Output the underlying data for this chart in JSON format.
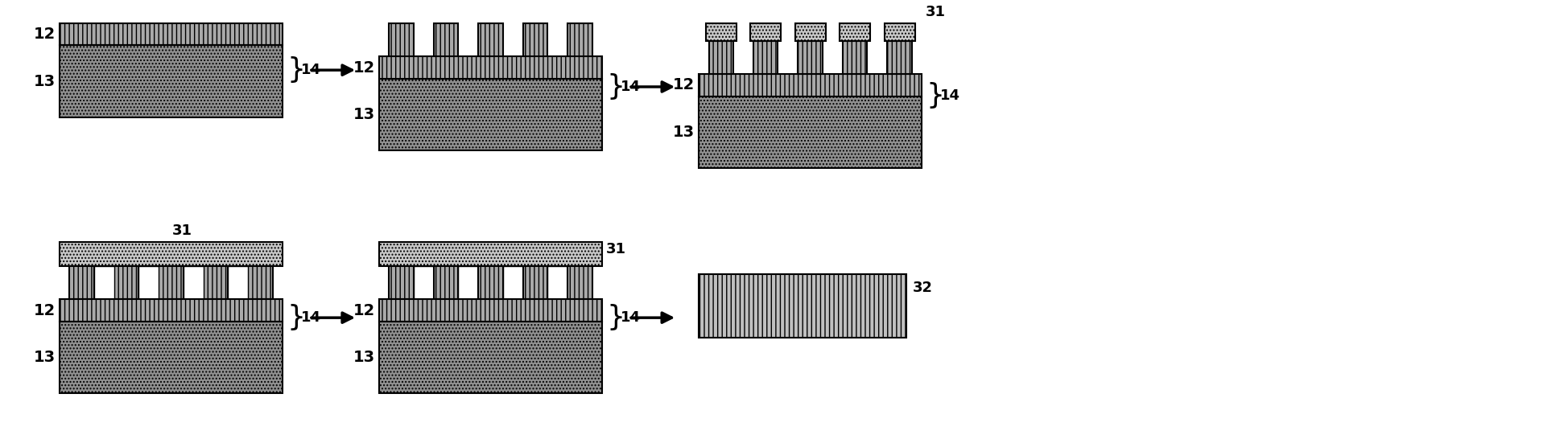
{
  "bg_color": "#ffffff",
  "col12_face": "#aaaaaa",
  "col12_edge": "#000000",
  "col12_hatch": "|||",
  "col13_face": "#909090",
  "col13_edge": "#000000",
  "col13_hatch": "....",
  "col31_face": "#c8c8c8",
  "col31_edge": "#000000",
  "col31_hatch": "....",
  "col32_face": "#c0c0c0",
  "col32_edge": "#000000",
  "col32_hatch": "|||",
  "white": "#ffffff",
  "fig_width": 19.48,
  "fig_height": 5.56,
  "font_size": 13,
  "label_font_size": 14
}
